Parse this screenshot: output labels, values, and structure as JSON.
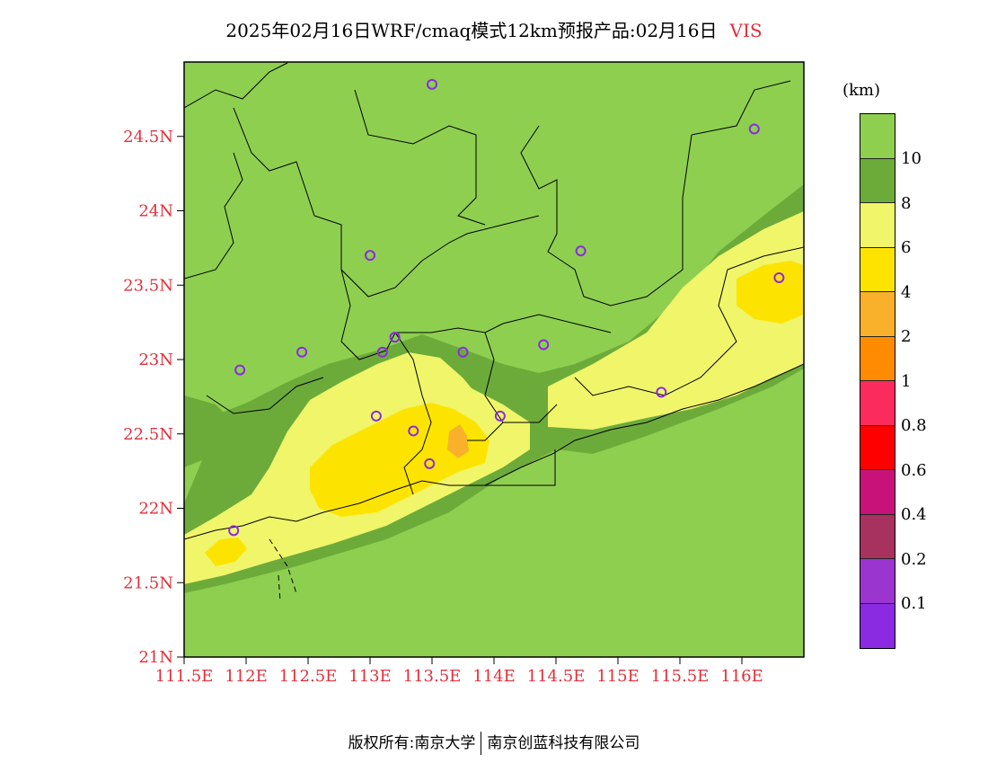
{
  "title": {
    "main": "2025年02月16日WRF/cmaq模式12km预报产品:02月16日",
    "variable": "VIS"
  },
  "colors": {
    "ocean": "#8ecf50",
    "band8": "#6cab3a",
    "band6": "#f0f56a",
    "band4": "#fde400",
    "band2": "#f9b12b",
    "station": "#8a2be2"
  },
  "axes": {
    "lat_ticks": [
      "21N",
      "21.5N",
      "22N",
      "22.5N",
      "23N",
      "23.5N",
      "24N",
      "24.5N"
    ],
    "lon_ticks": [
      "111.5E",
      "112E",
      "112.5E",
      "113E",
      "113.5E",
      "114E",
      "114.5E",
      "115E",
      "115.5E",
      "116E"
    ]
  },
  "legend": {
    "unit": "(km)",
    "colors": [
      "#8ecf50",
      "#6cab3a",
      "#f0f56a",
      "#fde400",
      "#f9b12b",
      "#ff8c00",
      "#fb2c5d",
      "#ff0000",
      "#c8127a",
      "#a8325f",
      "#9a35d0",
      "#8a2be2"
    ],
    "labels": [
      "10",
      "8",
      "6",
      "4",
      "2",
      "1",
      "0.8",
      "0.6",
      "0.4",
      "0.2",
      "0.1"
    ]
  },
  "stations": [
    {
      "lon": 113.5,
      "lat": 24.85
    },
    {
      "lon": 116.1,
      "lat": 24.55
    },
    {
      "lon": 114.7,
      "lat": 23.73
    },
    {
      "lon": 113.0,
      "lat": 23.7
    },
    {
      "lon": 116.3,
      "lat": 23.55
    },
    {
      "lon": 113.2,
      "lat": 23.15
    },
    {
      "lon": 113.1,
      "lat": 23.05
    },
    {
      "lon": 113.75,
      "lat": 23.05
    },
    {
      "lon": 114.4,
      "lat": 23.1
    },
    {
      "lon": 112.45,
      "lat": 23.05
    },
    {
      "lon": 111.95,
      "lat": 22.93
    },
    {
      "lon": 113.05,
      "lat": 22.62
    },
    {
      "lon": 113.35,
      "lat": 22.52
    },
    {
      "lon": 114.05,
      "lat": 22.62
    },
    {
      "lon": 115.35,
      "lat": 22.78
    },
    {
      "lon": 113.48,
      "lat": 22.3
    },
    {
      "lon": 111.9,
      "lat": 21.85
    }
  ],
  "footer": {
    "left": "版权所有:南京大学",
    "right": "南京创蓝科技有限公司"
  }
}
